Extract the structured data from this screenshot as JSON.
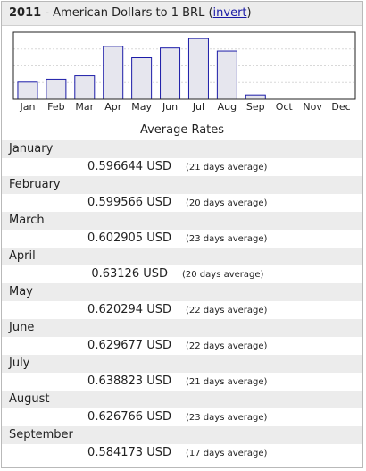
{
  "header": {
    "year": "2011",
    "title": "- American Dollars to 1 BRL (",
    "invert_link": "invert",
    "close_paren": ")"
  },
  "chart_data": {
    "type": "bar",
    "categories": [
      "Jan",
      "Feb",
      "Mar",
      "Apr",
      "May",
      "Jun",
      "Jul",
      "Aug",
      "Sep",
      "Oct",
      "Nov",
      "Dec"
    ],
    "values": [
      0.596644,
      0.599566,
      0.602905,
      0.63126,
      0.620294,
      0.629677,
      0.638823,
      0.626766,
      0.584173,
      null,
      null,
      null
    ],
    "ylim": [
      0.58,
      0.645
    ],
    "bar_fill": "#e6e6ee",
    "bar_stroke": "#1c1ca8",
    "grid": true,
    "xlabel": "",
    "ylabel": ""
  },
  "average_title": "Average Rates",
  "months": [
    {
      "name": "January",
      "rate": "0.596644 USD",
      "days": "(21 days average)"
    },
    {
      "name": "February",
      "rate": "0.599566 USD",
      "days": "(20 days average)"
    },
    {
      "name": "March",
      "rate": "0.602905 USD",
      "days": "(23 days average)"
    },
    {
      "name": "April",
      "rate": "0.63126 USD",
      "days": "(20 days average)"
    },
    {
      "name": "May",
      "rate": "0.620294 USD",
      "days": "(22 days average)"
    },
    {
      "name": "June",
      "rate": "0.629677 USD",
      "days": "(22 days average)"
    },
    {
      "name": "July",
      "rate": "0.638823 USD",
      "days": "(21 days average)"
    },
    {
      "name": "August",
      "rate": "0.626766 USD",
      "days": "(23 days average)"
    },
    {
      "name": "September",
      "rate": "0.584173 USD",
      "days": "(17 days average)"
    }
  ]
}
